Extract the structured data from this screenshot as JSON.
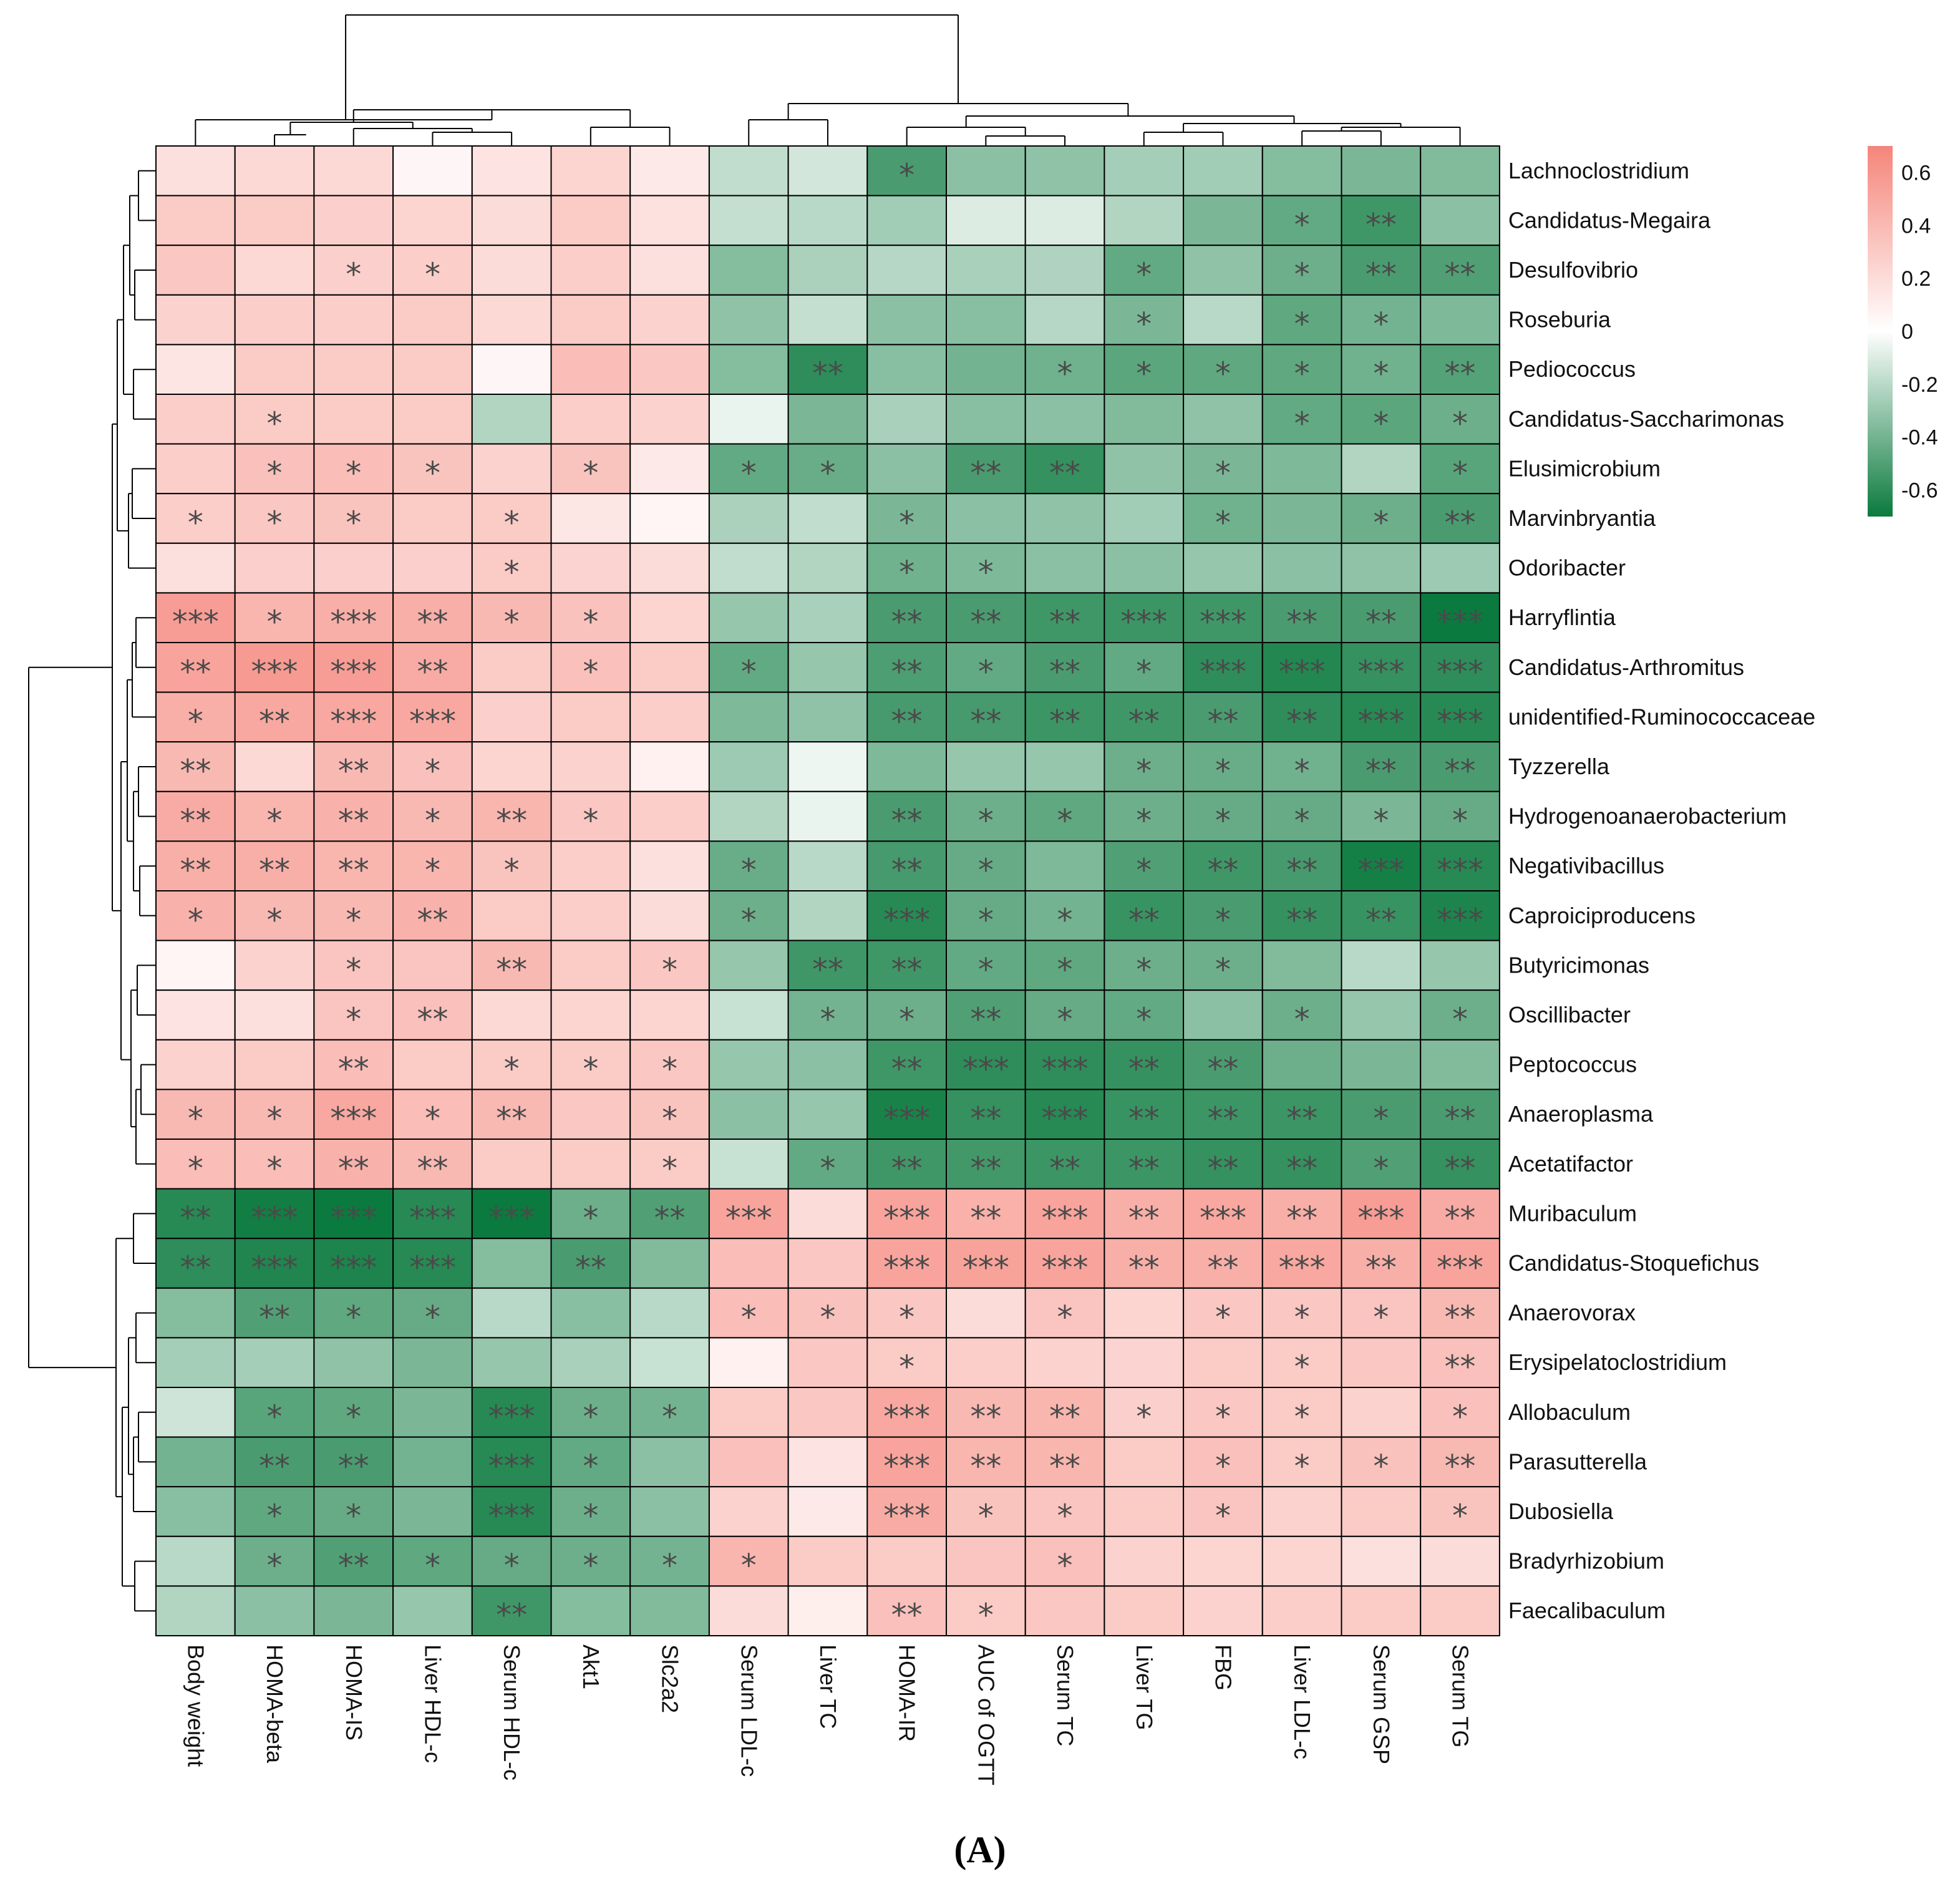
{
  "chart_data": {
    "type": "heatmap",
    "title": "",
    "panel_label": "(A)",
    "xlabel": "",
    "ylabel": "",
    "columns": [
      "Body weight",
      "HOMA-beta",
      "HOMA-IS",
      "Liver HDL-c",
      "Serum HDL-c",
      "Akt1",
      "Slc2a2",
      "Serum LDL-c",
      "Liver TC",
      "HOMA-IR",
      "AUC of OGTT",
      "Serum TC",
      "Liver TG",
      "FBG",
      "Liver LDL-c",
      "Serum GSP",
      "Serum TG"
    ],
    "rows": [
      "Lachnoclostridium",
      "Candidatus-Megaira",
      "Desulfovibrio",
      "Roseburia",
      "Pediococcus",
      "Candidatus-Saccharimonas",
      "Elusimicrobium",
      "Marvinbryantia",
      "Odoribacter",
      "Harryflintia",
      "Candidatus-Arthromitus",
      "unidentified-Ruminococcaceae",
      "Tyzzerella",
      "Hydrogenoanaerobacterium",
      "Negativibacillus",
      "Caproiciproducens",
      "Butyricimonas",
      "Oscillibacter",
      "Peptococcus",
      "Anaeroplasma",
      "Acetatifactor",
      "Muribaculum",
      "Candidatus-Stoquefichus",
      "Anaerovorax",
      "Erysipelatoclostridium",
      "Allobaculum",
      "Parasutterella",
      "Dubosiella",
      "Bradyrhizobium",
      "Faecalibaculum"
    ],
    "values": [
      [
        0.18,
        0.22,
        0.22,
        0.05,
        0.16,
        0.24,
        0.12,
        -0.18,
        -0.13,
        -0.52,
        -0.33,
        -0.32,
        -0.26,
        -0.27,
        -0.35,
        -0.38,
        -0.36
      ],
      [
        0.3,
        0.3,
        0.27,
        0.24,
        0.2,
        0.3,
        0.17,
        -0.17,
        -0.2,
        -0.27,
        -0.1,
        -0.1,
        -0.22,
        -0.38,
        -0.45,
        -0.55,
        -0.33
      ],
      [
        0.32,
        0.22,
        0.27,
        0.28,
        0.2,
        0.28,
        0.18,
        -0.35,
        -0.24,
        -0.21,
        -0.25,
        -0.23,
        -0.45,
        -0.32,
        -0.42,
        -0.52,
        -0.5
      ],
      [
        0.26,
        0.28,
        0.28,
        0.3,
        0.22,
        0.3,
        0.26,
        -0.32,
        -0.17,
        -0.33,
        -0.34,
        -0.21,
        -0.38,
        -0.2,
        -0.46,
        -0.4,
        -0.37
      ],
      [
        0.15,
        0.3,
        0.3,
        0.3,
        0.05,
        0.38,
        0.32,
        -0.35,
        -0.6,
        -0.34,
        -0.4,
        -0.41,
        -0.47,
        -0.46,
        -0.46,
        -0.41,
        -0.49
      ],
      [
        0.28,
        0.3,
        0.3,
        0.3,
        -0.22,
        0.28,
        0.26,
        -0.06,
        -0.38,
        -0.25,
        -0.34,
        -0.33,
        -0.36,
        -0.32,
        -0.45,
        -0.47,
        -0.42
      ],
      [
        0.28,
        0.36,
        0.38,
        0.34,
        0.26,
        0.34,
        0.12,
        -0.45,
        -0.43,
        -0.33,
        -0.52,
        -0.58,
        -0.32,
        -0.38,
        -0.37,
        -0.22,
        -0.48
      ],
      [
        0.28,
        0.32,
        0.34,
        0.3,
        0.3,
        0.14,
        0.06,
        -0.24,
        -0.18,
        -0.38,
        -0.33,
        -0.32,
        -0.27,
        -0.41,
        -0.38,
        -0.42,
        -0.52
      ],
      [
        0.18,
        0.27,
        0.27,
        0.27,
        0.3,
        0.25,
        0.2,
        -0.18,
        -0.22,
        -0.41,
        -0.37,
        -0.33,
        -0.33,
        -0.3,
        -0.33,
        -0.32,
        -0.28
      ],
      [
        0.56,
        0.42,
        0.46,
        0.46,
        0.4,
        0.35,
        0.24,
        -0.3,
        -0.25,
        -0.52,
        -0.52,
        -0.55,
        -0.56,
        -0.55,
        -0.52,
        -0.52,
        -0.78
      ],
      [
        0.52,
        0.58,
        0.56,
        0.48,
        0.3,
        0.36,
        0.3,
        -0.45,
        -0.3,
        -0.51,
        -0.45,
        -0.52,
        -0.45,
        -0.6,
        -0.63,
        -0.58,
        -0.6
      ],
      [
        0.46,
        0.5,
        0.5,
        0.5,
        0.27,
        0.3,
        0.28,
        -0.37,
        -0.32,
        -0.53,
        -0.53,
        -0.56,
        -0.55,
        -0.52,
        -0.6,
        -0.62,
        -0.62
      ],
      [
        0.4,
        0.22,
        0.4,
        0.36,
        0.24,
        0.26,
        0.08,
        -0.28,
        -0.05,
        -0.37,
        -0.3,
        -0.3,
        -0.42,
        -0.43,
        -0.41,
        -0.52,
        -0.52
      ],
      [
        0.48,
        0.42,
        0.44,
        0.4,
        0.42,
        0.32,
        0.28,
        -0.22,
        -0.06,
        -0.52,
        -0.42,
        -0.46,
        -0.42,
        -0.44,
        -0.44,
        -0.38,
        -0.44
      ],
      [
        0.46,
        0.46,
        0.42,
        0.42,
        0.34,
        0.28,
        0.18,
        -0.43,
        -0.2,
        -0.53,
        -0.44,
        -0.37,
        -0.5,
        -0.55,
        -0.53,
        -0.67,
        -0.62
      ],
      [
        0.44,
        0.4,
        0.4,
        0.44,
        0.3,
        0.28,
        0.2,
        -0.42,
        -0.22,
        -0.62,
        -0.44,
        -0.4,
        -0.57,
        -0.52,
        -0.58,
        -0.57,
        -0.65
      ],
      [
        0.06,
        0.26,
        0.33,
        0.33,
        0.4,
        0.3,
        0.32,
        -0.3,
        -0.55,
        -0.55,
        -0.45,
        -0.46,
        -0.42,
        -0.42,
        -0.36,
        -0.2,
        -0.3
      ],
      [
        0.16,
        0.18,
        0.33,
        0.36,
        0.22,
        0.24,
        0.24,
        -0.16,
        -0.4,
        -0.42,
        -0.5,
        -0.44,
        -0.45,
        -0.33,
        -0.42,
        -0.3,
        -0.42
      ],
      [
        0.26,
        0.3,
        0.38,
        0.3,
        0.3,
        0.3,
        0.32,
        -0.3,
        -0.33,
        -0.55,
        -0.6,
        -0.6,
        -0.58,
        -0.52,
        -0.42,
        -0.38,
        -0.36
      ],
      [
        0.4,
        0.4,
        0.5,
        0.38,
        0.4,
        0.32,
        0.34,
        -0.33,
        -0.3,
        -0.66,
        -0.58,
        -0.62,
        -0.57,
        -0.56,
        -0.56,
        -0.52,
        -0.52
      ],
      [
        0.38,
        0.38,
        0.44,
        0.4,
        0.3,
        0.3,
        0.3,
        -0.16,
        -0.45,
        -0.55,
        -0.54,
        -0.56,
        -0.56,
        -0.58,
        -0.58,
        -0.5,
        -0.58
      ],
      [
        -0.62,
        -0.68,
        -0.7,
        -0.62,
        -0.78,
        -0.42,
        -0.5,
        0.52,
        0.2,
        0.52,
        0.45,
        0.52,
        0.46,
        0.5,
        0.46,
        0.56,
        0.48
      ],
      [
        -0.6,
        -0.64,
        -0.65,
        -0.62,
        -0.35,
        -0.52,
        -0.36,
        0.38,
        0.32,
        0.52,
        0.53,
        0.52,
        0.46,
        0.46,
        0.5,
        0.46,
        0.52
      ],
      [
        -0.35,
        -0.5,
        -0.46,
        -0.44,
        -0.2,
        -0.34,
        -0.2,
        0.38,
        0.35,
        0.32,
        0.2,
        0.33,
        0.24,
        0.32,
        0.32,
        0.33,
        0.4
      ],
      [
        -0.26,
        -0.26,
        -0.32,
        -0.38,
        -0.3,
        -0.25,
        -0.16,
        0.08,
        0.32,
        0.3,
        0.28,
        0.26,
        0.25,
        0.3,
        0.3,
        0.32,
        0.36
      ],
      [
        -0.14,
        -0.48,
        -0.46,
        -0.38,
        -0.62,
        -0.42,
        -0.4,
        0.3,
        0.32,
        0.5,
        0.4,
        0.42,
        0.27,
        0.32,
        0.3,
        0.26,
        0.36
      ],
      [
        -0.4,
        -0.52,
        -0.52,
        -0.4,
        -0.62,
        -0.45,
        -0.33,
        0.36,
        0.16,
        0.52,
        0.42,
        0.42,
        0.3,
        0.36,
        0.3,
        0.35,
        0.4
      ],
      [
        -0.34,
        -0.46,
        -0.44,
        -0.38,
        -0.62,
        -0.42,
        -0.33,
        0.26,
        0.12,
        0.48,
        0.34,
        0.33,
        0.3,
        0.33,
        0.26,
        0.3,
        0.34
      ],
      [
        -0.2,
        -0.42,
        -0.5,
        -0.46,
        -0.44,
        -0.42,
        -0.4,
        0.42,
        0.3,
        0.3,
        0.33,
        0.36,
        0.26,
        0.24,
        0.24,
        0.18,
        0.2
      ],
      [
        -0.22,
        -0.33,
        -0.38,
        -0.3,
        -0.55,
        -0.35,
        -0.36,
        0.2,
        0.1,
        0.36,
        0.3,
        0.32,
        0.3,
        0.26,
        0.28,
        0.3,
        0.3
      ]
    ],
    "significance": [
      [
        "",
        "",
        "",
        "",
        "",
        "",
        "",
        "",
        "",
        "*",
        "",
        "",
        "",
        "",
        "",
        "",
        ""
      ],
      [
        "",
        "",
        "",
        "",
        "",
        "",
        "",
        "",
        "",
        "",
        "",
        "",
        "",
        "",
        "*",
        "**",
        ""
      ],
      [
        "",
        "",
        "*",
        "*",
        "",
        "",
        "",
        "",
        "",
        "",
        "",
        "",
        "*",
        "",
        "*",
        "**",
        "**"
      ],
      [
        "",
        "",
        "",
        "",
        "",
        "",
        "",
        "",
        "",
        "",
        "",
        "",
        "*",
        "",
        "*",
        "*",
        ""
      ],
      [
        "",
        "",
        "",
        "",
        "",
        "",
        "",
        "",
        "**",
        "",
        "",
        "*",
        "*",
        "*",
        "*",
        "*",
        "**"
      ],
      [
        "",
        "*",
        "",
        "",
        "",
        "",
        "",
        "",
        "",
        "",
        "",
        "",
        "",
        "",
        "*",
        "*",
        "*"
      ],
      [
        "",
        "*",
        "*",
        "*",
        "",
        "*",
        "",
        "*",
        "*",
        "",
        "**",
        "**",
        "",
        "*",
        "",
        "",
        "*"
      ],
      [
        "*",
        "*",
        "*",
        "",
        "*",
        "",
        "",
        "",
        "",
        "*",
        "",
        "",
        "",
        "*",
        "",
        "*",
        "**"
      ],
      [
        "",
        "",
        "",
        "",
        "*",
        "",
        "",
        "",
        "",
        "*",
        "*",
        "",
        "",
        "",
        "",
        "",
        ""
      ],
      [
        "***",
        "*",
        "***",
        "**",
        "*",
        "*",
        "",
        "",
        "",
        "**",
        "**",
        "**",
        "***",
        "***",
        "**",
        "**",
        "***"
      ],
      [
        "**",
        "***",
        "***",
        "**",
        "",
        "*",
        "",
        "*",
        "",
        "**",
        "*",
        "**",
        "*",
        "***",
        "***",
        "***",
        "***"
      ],
      [
        "*",
        "**",
        "***",
        "***",
        "",
        "",
        "",
        "",
        "",
        "**",
        "**",
        "**",
        "**",
        "**",
        "**",
        "***",
        "***"
      ],
      [
        "**",
        "",
        "**",
        "*",
        "",
        "",
        "",
        "",
        "",
        "",
        "",
        "",
        "*",
        "*",
        "*",
        "**",
        "**"
      ],
      [
        "**",
        "*",
        "**",
        "*",
        "**",
        "*",
        "",
        "",
        "",
        "**",
        "*",
        "*",
        "*",
        "*",
        "*",
        "*",
        "*"
      ],
      [
        "**",
        "**",
        "**",
        "*",
        "*",
        "",
        "",
        "*",
        "",
        "**",
        "*",
        "",
        "*",
        "**",
        "**",
        "***",
        "***"
      ],
      [
        "*",
        "*",
        "*",
        "**",
        "",
        "",
        "",
        "*",
        "",
        "***",
        "*",
        "*",
        "**",
        "*",
        "**",
        "**",
        "***"
      ],
      [
        "",
        "",
        "*",
        "",
        "**",
        "",
        "*",
        "",
        "**",
        "**",
        "*",
        "*",
        "*",
        "*",
        "",
        "",
        ""
      ],
      [
        "",
        "",
        "*",
        "**",
        "",
        "",
        "",
        "",
        "*",
        "*",
        "**",
        "*",
        "*",
        "",
        "*",
        "",
        "*"
      ],
      [
        "",
        "",
        "**",
        "",
        "*",
        "*",
        "*",
        "",
        "",
        "**",
        "***",
        "***",
        "**",
        "**",
        "",
        "",
        ""
      ],
      [
        "*",
        "*",
        "***",
        "*",
        "**",
        "",
        "*",
        "",
        "",
        "***",
        "**",
        "***",
        "**",
        "**",
        "**",
        "*",
        "**"
      ],
      [
        "*",
        "*",
        "**",
        "**",
        "",
        "",
        "*",
        "",
        "*",
        "**",
        "**",
        "**",
        "**",
        "**",
        "**",
        "*",
        "**"
      ],
      [
        "**",
        "***",
        "***",
        "***",
        "***",
        "*",
        "**",
        "***",
        "",
        "***",
        "**",
        "***",
        "**",
        "***",
        "**",
        "***",
        "**"
      ],
      [
        "**",
        "***",
        "***",
        "***",
        "",
        "**",
        "",
        "",
        "",
        "***",
        "***",
        "***",
        "**",
        "**",
        "***",
        "**",
        "***"
      ],
      [
        "",
        "**",
        "*",
        "*",
        "",
        "",
        "",
        "*",
        "*",
        "*",
        "",
        "*",
        "",
        "*",
        "*",
        "*",
        "**"
      ],
      [
        "",
        "",
        "",
        "",
        "",
        "",
        "",
        "",
        "",
        "*",
        "",
        "",
        "",
        "",
        "*",
        "",
        "**"
      ],
      [
        "",
        "*",
        "*",
        "",
        "***",
        "*",
        "*",
        "",
        "",
        "***",
        "**",
        "**",
        "*",
        "*",
        "*",
        "",
        "*"
      ],
      [
        "",
        "**",
        "**",
        "",
        "***",
        "*",
        "",
        "",
        "",
        "***",
        "**",
        "**",
        "",
        "*",
        "*",
        "*",
        "**"
      ],
      [
        "",
        "*",
        "*",
        "",
        "***",
        "*",
        "",
        "",
        "",
        "***",
        "*",
        "*",
        "",
        "*",
        "",
        "",
        "*"
      ],
      [
        "",
        "*",
        "**",
        "*",
        "*",
        "*",
        "*",
        "*",
        "",
        "",
        "",
        "*",
        "",
        "",
        "",
        "",
        ""
      ],
      [
        "",
        "",
        "",
        "",
        "**",
        "",
        "",
        "",
        "",
        "**",
        "*",
        "",
        "",
        "",
        "",
        "",
        ""
      ]
    ],
    "color_scale": {
      "min": -0.7,
      "max": 0.7,
      "low_color": "#0b7a3e",
      "mid_color": "#ffffff",
      "high_color": "#f5857a",
      "ticks": [
        0.6,
        0.4,
        0.2,
        0,
        -0.2,
        -0.4,
        -0.6
      ],
      "tick_labels": [
        "0.6",
        "0.4",
        "0.2",
        "0",
        "-0.2",
        "-0.4",
        "-0.6"
      ]
    },
    "grid": true,
    "legend_position": "top-right",
    "column_dendrogram": true,
    "row_dendrogram": true
  }
}
